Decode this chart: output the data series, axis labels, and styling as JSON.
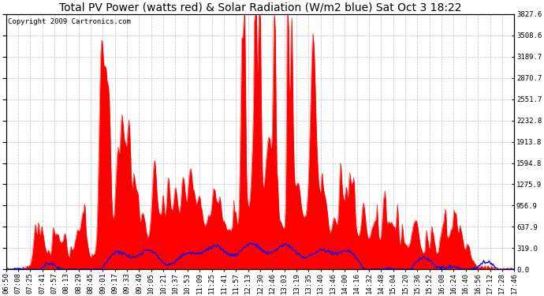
{
  "title": "Total PV Power (watts red) & Solar Radiation (W/m2 blue) Sat Oct 3 18:22",
  "copyright_text": "Copyright 2009 Cartronics.com",
  "y_right_ticks": [
    0.0,
    319.0,
    637.9,
    956.9,
    1275.9,
    1594.8,
    1913.8,
    2232.8,
    2551.7,
    2870.7,
    3189.7,
    3508.6,
    3827.6
  ],
  "y_max": 3827.6,
  "y_min": 0.0,
  "background_color": "#ffffff",
  "plot_bg_color": "#ffffff",
  "grid_color": "#b0b0b0",
  "red_color": "#ff0000",
  "blue_color": "#0000ff",
  "x_labels": [
    "06:50",
    "07:08",
    "07:25",
    "07:41",
    "07:57",
    "08:13",
    "08:29",
    "08:45",
    "09:01",
    "09:17",
    "09:33",
    "09:49",
    "10:05",
    "10:21",
    "10:37",
    "10:53",
    "11:09",
    "11:25",
    "11:41",
    "11:57",
    "12:13",
    "12:30",
    "12:46",
    "13:03",
    "13:19",
    "13:35",
    "13:40",
    "13:46",
    "14:00",
    "14:16",
    "14:32",
    "14:48",
    "15:04",
    "15:20",
    "15:36",
    "15:52",
    "16:08",
    "16:24",
    "16:40",
    "16:56",
    "17:12",
    "17:28",
    "17:46"
  ],
  "n_points": 650,
  "title_fontsize": 10,
  "tick_fontsize": 6.5,
  "copyright_fontsize": 6.5,
  "figwidth": 6.9,
  "figheight": 3.75,
  "dpi": 100
}
